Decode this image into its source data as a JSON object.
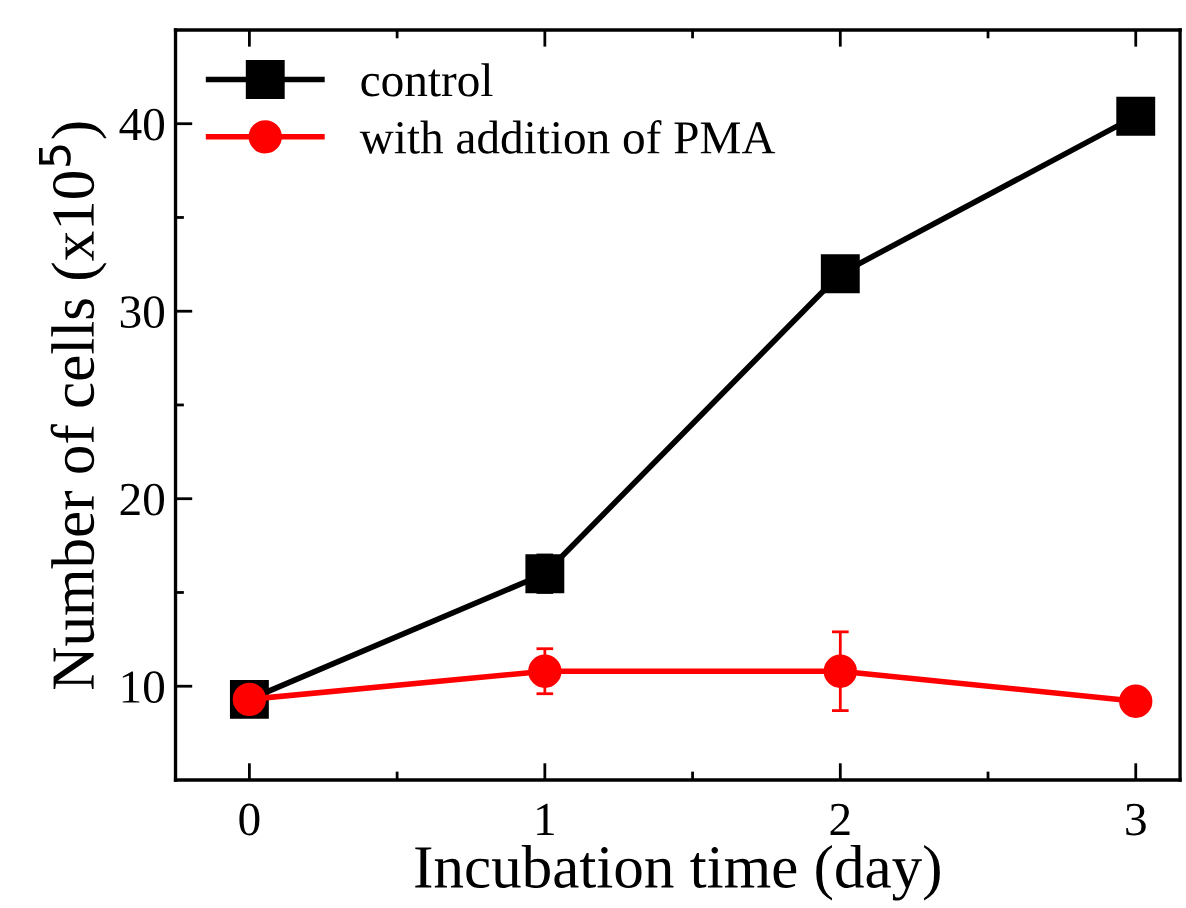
{
  "chart_data": {
    "type": "line",
    "xlabel": "Incubation time (day)",
    "ylabel": "Number of cells (x10$^{5}$)",
    "x": [
      0,
      1,
      2,
      3
    ],
    "series": [
      {
        "name": "control",
        "color": "#000000",
        "marker": "square",
        "values": [
          9.3,
          16.0,
          32.0,
          40.4
        ],
        "errors": [
          null,
          1.0,
          null,
          null
        ]
      },
      {
        "name": "with addition of PMA",
        "color": "#ff0000",
        "marker": "circle",
        "values": [
          9.3,
          10.8,
          10.8,
          9.2
        ],
        "errors": [
          null,
          1.2,
          2.1,
          null
        ]
      }
    ],
    "xlim": [
      -0.25,
      3.15
    ],
    "xticks": [
      0,
      {
        "value": 0.5,
        "label": null
      },
      1,
      {
        "value": 1.5,
        "label": null
      },
      2,
      {
        "value": 2.5,
        "label": null
      },
      3
    ],
    "ylim": [
      5,
      45
    ],
    "yticks": [
      10,
      {
        "value": 15,
        "label": null
      },
      20,
      {
        "value": 25,
        "label": null
      },
      30,
      {
        "value": 35,
        "label": null
      },
      40
    ],
    "grid": false,
    "legend": "top left",
    "line_style": "solid"
  }
}
